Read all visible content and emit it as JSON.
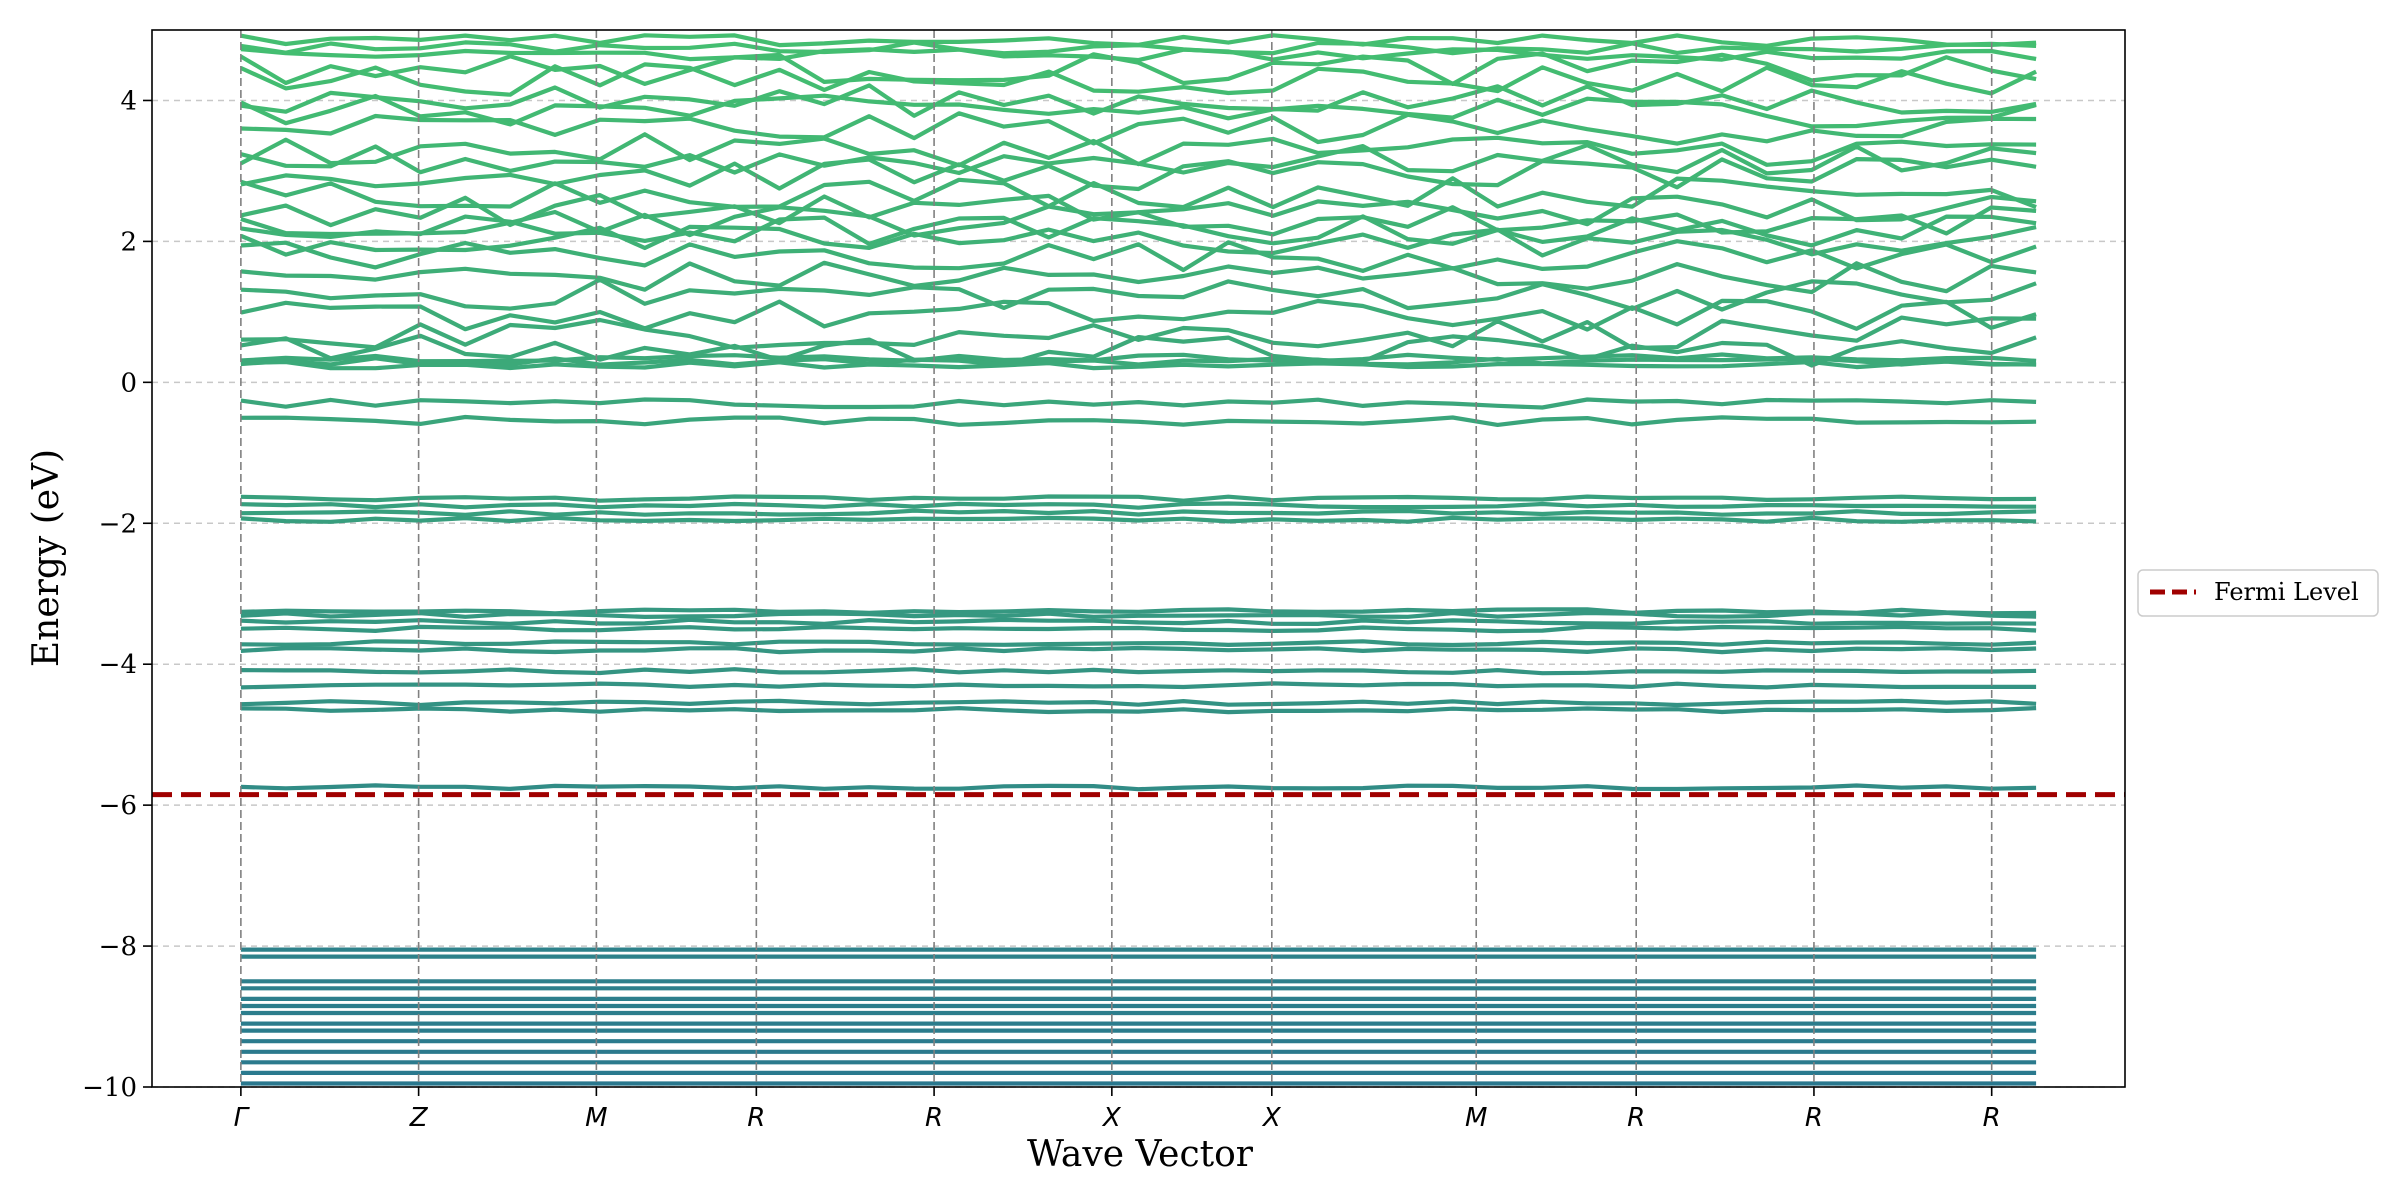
{
  "chart_data": {
    "type": "line",
    "title": "",
    "xlabel": "Wave Vector",
    "ylabel": "Energy (eV)",
    "ylim": [
      -10,
      5
    ],
    "yticks": [
      -10,
      -8,
      -6,
      -4,
      -2,
      0,
      2,
      4
    ],
    "ytick_labels": [
      "−10",
      "−8",
      "−6",
      "−4",
      "−2",
      "0",
      "2",
      "4"
    ],
    "kpath": [
      {
        "label": "Γ",
        "pos": 0.0
      },
      {
        "label": "Z",
        "pos": 1.0
      },
      {
        "label": "M",
        "pos": 2.0
      },
      {
        "label": "R",
        "pos": 2.9
      },
      {
        "label": "R",
        "pos": 3.9
      },
      {
        "label": "X",
        "pos": 4.9
      },
      {
        "label": "X",
        "pos": 5.8
      },
      {
        "label": "M",
        "pos": 6.95
      },
      {
        "label": "R",
        "pos": 7.85
      },
      {
        "label": "R",
        "pos": 8.85
      },
      {
        "label": "R",
        "pos": 9.85
      }
    ],
    "k_end": 10.1,
    "fermi_level": -5.85,
    "fermi_color": "#a00000",
    "legend": {
      "entries": [
        "Fermi Level"
      ],
      "placement": "center-right, outside plot"
    },
    "grid": "y dashed",
    "bands_approx": {
      "flat_core": [
        -9.95,
        -9.8,
        -9.65,
        -9.5,
        -9.35,
        -9.2,
        -9.1,
        -8.95,
        -8.85,
        -8.75,
        -8.6,
        -8.5,
        -8.15,
        -8.05
      ],
      "flat_mid": [
        -5.75,
        -4.65,
        -4.55,
        -4.3,
        -4.1,
        -3.8,
        -3.7,
        -3.5,
        -3.4,
        -3.3,
        -3.25,
        -1.95,
        -1.85,
        -1.75,
        -1.65
      ],
      "valence_top": [
        -0.55,
        -0.3
      ],
      "conduction": [
        0.25,
        0.3,
        0.35,
        0.45,
        0.7,
        0.95,
        1.25,
        1.5,
        1.8,
        2.0,
        2.15,
        2.3,
        2.45,
        2.7,
        2.95,
        3.15,
        3.3,
        3.6,
        3.85,
        4.0,
        4.3,
        4.45,
        4.65,
        4.75,
        4.85
      ]
    },
    "colors": {
      "band_low": "#2a788e",
      "band_high": "#44bf70"
    }
  }
}
